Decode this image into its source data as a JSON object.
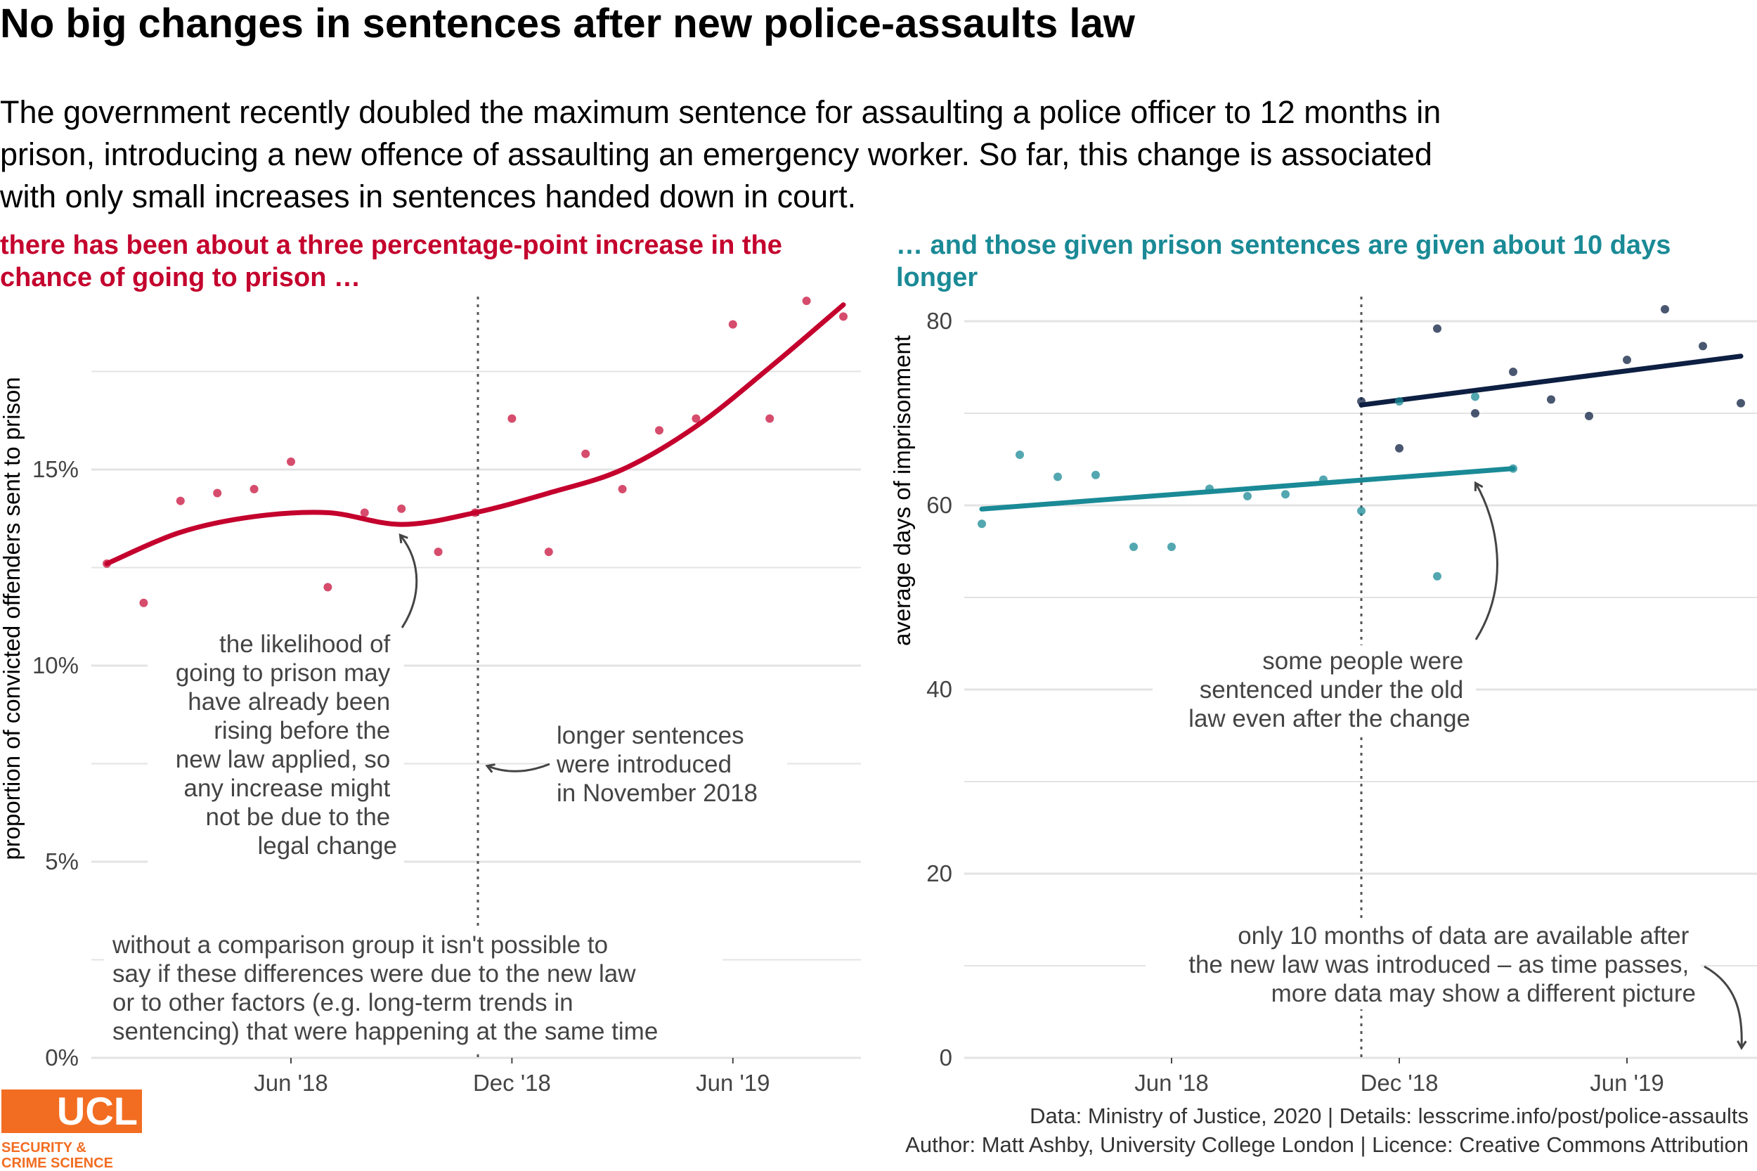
{
  "title": "No big changes in sentences after new police-assaults law",
  "subtitle": "The government recently doubled the maximum sentence for assaulting a police officer to 12 months in prison, introducing a new offence of assaulting an emergency worker. So far, this change is associated with only small increases in sentences handed down in court.",
  "colors": {
    "red": "#c4002d",
    "teal": "#1a8a96",
    "navy": "#0d1f42",
    "orange": "#f26d21"
  },
  "caption": {
    "line1": "Data: Ministry of Justice, 2020 |  Details: lesscrime.info/post/police-assaults",
    "line2": "Author: Matt Ashby, University College London |  Licence: Creative Commons Attribution"
  },
  "logo": {
    "text": "UCL",
    "line1": "SECURITY &",
    "line2": "CRIME SCIENCE"
  },
  "chart_data": [
    {
      "type": "scatter",
      "subtitle": "there has been about a three percentage-point increase in the chance of going to prison …",
      "ylabel": "proportion of convicted offenders sent to prison",
      "xlabel": "",
      "x_tick_labels": [
        "Jun '18",
        "Dec '18",
        "Jun '19"
      ],
      "y_tick_labels": [
        "0%",
        "5%",
        "10%",
        "15%"
      ],
      "ylim": [
        0,
        19.5
      ],
      "grid": true,
      "law_change": "Nov 2018",
      "series": [
        {
          "name": "",
          "x": [
            "2018-01",
            "2018-02",
            "2018-03",
            "2018-04",
            "2018-05",
            "2018-06",
            "2018-07",
            "2018-08",
            "2018-09",
            "2018-10",
            "2018-11",
            "2018-12",
            "2019-01",
            "2019-02",
            "2019-03",
            "2019-04",
            "2019-05",
            "2019-06",
            "2019-07",
            "2019-08",
            "2019-09"
          ],
          "y": [
            12.6,
            11.6,
            14.2,
            14.4,
            14.5,
            15.2,
            12.0,
            13.9,
            14.0,
            12.9,
            13.9,
            16.3,
            12.9,
            15.4,
            14.5,
            16.0,
            16.3,
            18.7,
            16.3,
            19.3,
            18.9
          ]
        }
      ],
      "trend": {
        "x": [
          "2018-01",
          "2018-03",
          "2018-05",
          "2018-07",
          "2018-09",
          "2018-11",
          "2019-01",
          "2019-03",
          "2019-05",
          "2019-07",
          "2019-09"
        ],
        "y": [
          12.6,
          13.4,
          13.8,
          13.9,
          13.6,
          13.9,
          14.4,
          15.0,
          16.1,
          17.6,
          19.2
        ]
      },
      "annotations": [
        "the likelihood of going to prison may have already been rising before the new law applied, so any increase might not be due to the legal change",
        "longer sentences were introduced in November 2018",
        "without a comparison group it isn't possible to say if these differences were due to the new law or to other factors (e.g. long-term trends in sentencing) that were happening at the same time"
      ]
    },
    {
      "type": "scatter",
      "subtitle": "… and those given prison sentences are given about 10 days longer",
      "ylabel": "average days of imprisonment",
      "xlabel": "",
      "x_tick_labels": [
        "Jun '18",
        "Dec '18",
        "Jun '19"
      ],
      "y_tick_labels": [
        "0",
        "20",
        "40",
        "60",
        "80"
      ],
      "ylim": [
        0,
        80
      ],
      "grid": true,
      "law_change": "Nov 2018",
      "series": [
        {
          "name": "old law",
          "x": [
            "2018-01",
            "2018-02",
            "2018-03",
            "2018-04",
            "2018-05",
            "2018-06",
            "2018-07",
            "2018-08",
            "2018-09",
            "2018-10",
            "2018-11",
            "2018-12",
            "2019-01",
            "2019-02",
            "2019-03"
          ],
          "y": [
            58.0,
            65.5,
            63.1,
            63.3,
            55.5,
            55.5,
            61.8,
            61.0,
            61.2,
            62.8,
            59.4,
            71.3,
            52.3,
            71.8,
            64.0
          ]
        },
        {
          "name": "new law",
          "x": [
            "2018-11",
            "2018-12",
            "2019-01",
            "2019-02",
            "2019-03",
            "2019-04",
            "2019-05",
            "2019-06",
            "2019-07",
            "2019-08",
            "2019-09"
          ],
          "y": [
            71.3,
            66.2,
            79.2,
            70.0,
            74.5,
            71.5,
            69.7,
            75.8,
            81.3,
            77.3,
            71.1
          ]
        }
      ],
      "trends": [
        {
          "name": "old law",
          "x": [
            "2018-01",
            "2019-03"
          ],
          "y": [
            59.6,
            64.0
          ]
        },
        {
          "name": "new law",
          "x": [
            "2018-11",
            "2019-09"
          ],
          "y": [
            70.9,
            76.2
          ]
        }
      ],
      "annotations": [
        "some people were sentenced under the old law even after the change",
        "only 10 months of data are available after the new law was introduced – as time passes, more data may show a different picture"
      ]
    }
  ]
}
